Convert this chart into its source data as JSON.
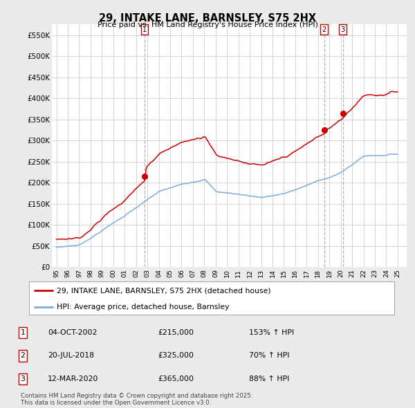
{
  "title": "29, INTAKE LANE, BARNSLEY, S75 2HX",
  "subtitle": "Price paid vs. HM Land Registry's House Price Index (HPI)",
  "ylim": [
    0,
    575000
  ],
  "yticks": [
    0,
    50000,
    100000,
    150000,
    200000,
    250000,
    300000,
    350000,
    400000,
    450000,
    500000,
    550000
  ],
  "ytick_labels": [
    "£0",
    "£50K",
    "£100K",
    "£150K",
    "£200K",
    "£250K",
    "£300K",
    "£350K",
    "£400K",
    "£450K",
    "£500K",
    "£550K"
  ],
  "hpi_color": "#7aaddb",
  "price_color": "#cc0000",
  "t1": 2002.75,
  "t2": 2018.54,
  "t3": 2020.19,
  "sale1_price": 215000,
  "sale2_price": 325000,
  "sale3_price": 365000,
  "legend_price": "29, INTAKE LANE, BARNSLEY, S75 2HX (detached house)",
  "legend_hpi": "HPI: Average price, detached house, Barnsley",
  "table_rows": [
    [
      "1",
      "04-OCT-2002",
      "£215,000",
      "153% ↑ HPI"
    ],
    [
      "2",
      "20-JUL-2018",
      "£325,000",
      "70% ↑ HPI"
    ],
    [
      "3",
      "12-MAR-2020",
      "£365,000",
      "88% ↑ HPI"
    ]
  ],
  "footnote": "Contains HM Land Registry data © Crown copyright and database right 2025.\nThis data is licensed under the Open Government Licence v3.0.",
  "bg_color": "#ebebeb",
  "plot_bg_color": "#ffffff",
  "grid_color": "#d0d0d0",
  "vline_color": "#aaaaaa"
}
